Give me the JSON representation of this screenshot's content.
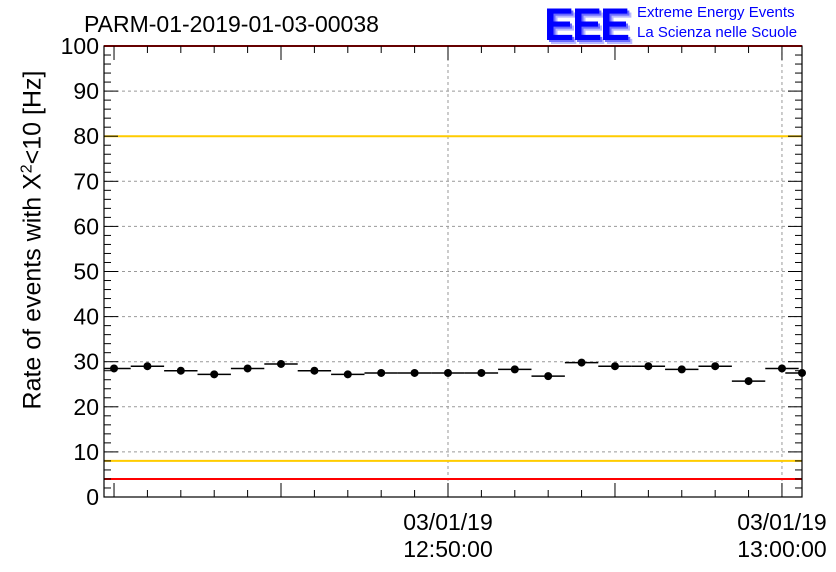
{
  "header": {
    "run_title": "PARM-01-2019-01-03-00038",
    "logo_text": "EEE",
    "org_line1": "Extreme Energy Events",
    "org_line2": "La Scienza nelle Scuole"
  },
  "colors": {
    "logo": "#0000ff",
    "warning_line": "#ffcc00",
    "alarm_line": "#ff0000",
    "markers": "#000000",
    "grid": "#999999"
  },
  "chart_data": {
    "type": "scatter",
    "title": "PARM-01-2019-01-03-00038",
    "xlabel": "",
    "ylabel_prefix": "Rate of events with X",
    "ylabel_sup": "2",
    "ylabel_suffix": "<10 [Hz]",
    "ylim": [
      0,
      100
    ],
    "yticks": [
      0,
      10,
      20,
      30,
      40,
      50,
      60,
      70,
      80,
      90,
      100
    ],
    "x_unit": "minutes after 12:40:00 on 03/01/19",
    "xlim": [
      -0.3,
      20.6
    ],
    "xticks": [
      {
        "x": 10,
        "date": "03/01/19",
        "time": "12:50:00"
      },
      {
        "x": 20,
        "date": "03/01/19",
        "time": "13:00:00"
      }
    ],
    "grid": true,
    "bin_width": 1,
    "x": [
      0,
      1,
      2,
      3,
      4,
      5,
      6,
      7,
      8,
      9,
      10,
      11,
      12,
      13,
      14,
      15,
      16,
      17,
      18,
      19,
      20,
      20.6
    ],
    "y": [
      28.5,
      29.0,
      28.0,
      27.2,
      28.5,
      29.5,
      28.0,
      27.2,
      27.5,
      27.5,
      27.5,
      27.5,
      28.3,
      26.8,
      29.8,
      29.0,
      29.0,
      28.3,
      29.0,
      25.7,
      28.5,
      27.5
    ],
    "reference_lines": [
      {
        "y": 100,
        "color": "#ff0000"
      },
      {
        "y": 80,
        "color": "#ffcc00"
      },
      {
        "y": 8,
        "color": "#ffcc00"
      },
      {
        "y": 4,
        "color": "#ff0000"
      }
    ]
  }
}
